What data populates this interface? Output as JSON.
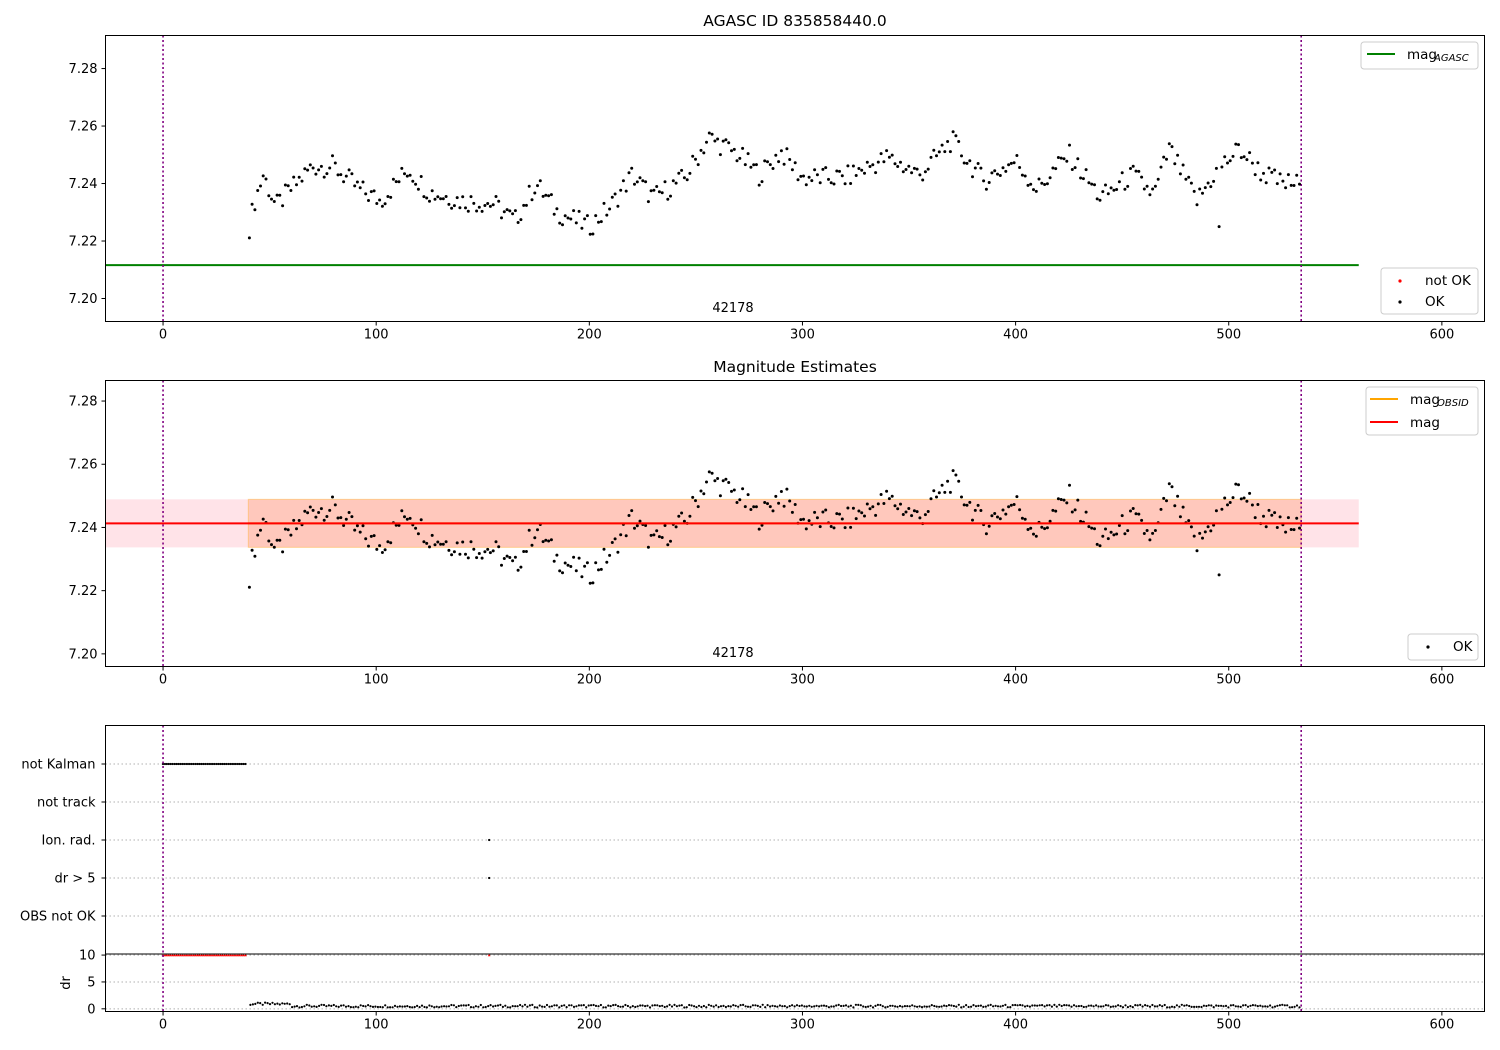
{
  "colors": {
    "black": "#000000",
    "red": "#ff0000",
    "green": "#008000",
    "orange": "#ffa500",
    "purple": "#800080",
    "band_red": "#ffc0cb",
    "band_orange": "#ffa07a",
    "grid": "#b0b0b0"
  },
  "chart_data": [
    {
      "type": "scatter",
      "title": "AGASC ID 835858440.0",
      "xlim": [
        -27,
        620
      ],
      "ylim": [
        7.192,
        7.2915
      ],
      "xticks": [
        0,
        100,
        200,
        300,
        400,
        500,
        600
      ],
      "yticks": [
        7.2,
        7.22,
        7.24,
        7.26,
        7.28
      ],
      "obsid_label": "42178",
      "obs_boundaries": [
        0,
        534
      ],
      "mag_agasc": 7.2116,
      "mag_line_x": [
        -27,
        561
      ],
      "legend_upper": {
        "entries": [
          {
            "label": "mag",
            "subscript": "AGASC",
            "color": "#008000"
          }
        ]
      },
      "legend_lower": {
        "entries": [
          {
            "label": "not OK",
            "color": "#ff0000"
          },
          {
            "label": "OK",
            "color": "#000000"
          }
        ]
      }
    },
    {
      "type": "scatter",
      "title": "Magnitude Estimates",
      "xlim": [
        -27,
        620
      ],
      "ylim": [
        7.196,
        7.2865
      ],
      "xticks": [
        0,
        100,
        200,
        300,
        400,
        500,
        600
      ],
      "yticks": [
        7.2,
        7.22,
        7.24,
        7.26,
        7.28
      ],
      "obsid_label": "42178",
      "obs_boundaries": [
        0,
        534
      ],
      "mag": 7.2413,
      "mag_obsid": 7.2413,
      "band": [
        7.2337,
        7.2489
      ],
      "band_x": [
        -27,
        561
      ],
      "legend_upper": {
        "entries": [
          {
            "label": "mag",
            "subscript": "OBSID",
            "color": "#ffa500"
          },
          {
            "label": "mag",
            "color": "#ff0000"
          }
        ]
      },
      "legend_lower": {
        "entries": [
          {
            "label": "OK",
            "color": "#000000"
          }
        ]
      }
    },
    {
      "type": "scatter",
      "title": "",
      "xlim": [
        -27,
        620
      ],
      "xticks": [
        0,
        100,
        200,
        300,
        400,
        500,
        600
      ],
      "flag_categories": [
        "not Kalman",
        "not track",
        "Ion. rad.",
        "dr > 5",
        "OBS not OK"
      ],
      "flag_points": {
        "not Kalman": {
          "x_range": [
            0,
            39
          ]
        },
        "Ion. rad.": {
          "x_values": [
            153
          ]
        },
        "dr > 5": {
          "x_values": [
            153
          ]
        }
      },
      "dr_ylabel": "dr",
      "dr_yticks": [
        0,
        5,
        10
      ],
      "dr_ylim": [
        -0.5,
        10.2
      ],
      "dr_clipped_red_x": [
        [
          0,
          39
        ],
        [
          153,
          153
        ]
      ],
      "dr_baseline": 0.5,
      "obs_boundaries": [
        0,
        534
      ]
    }
  ],
  "dates_hidden": true
}
